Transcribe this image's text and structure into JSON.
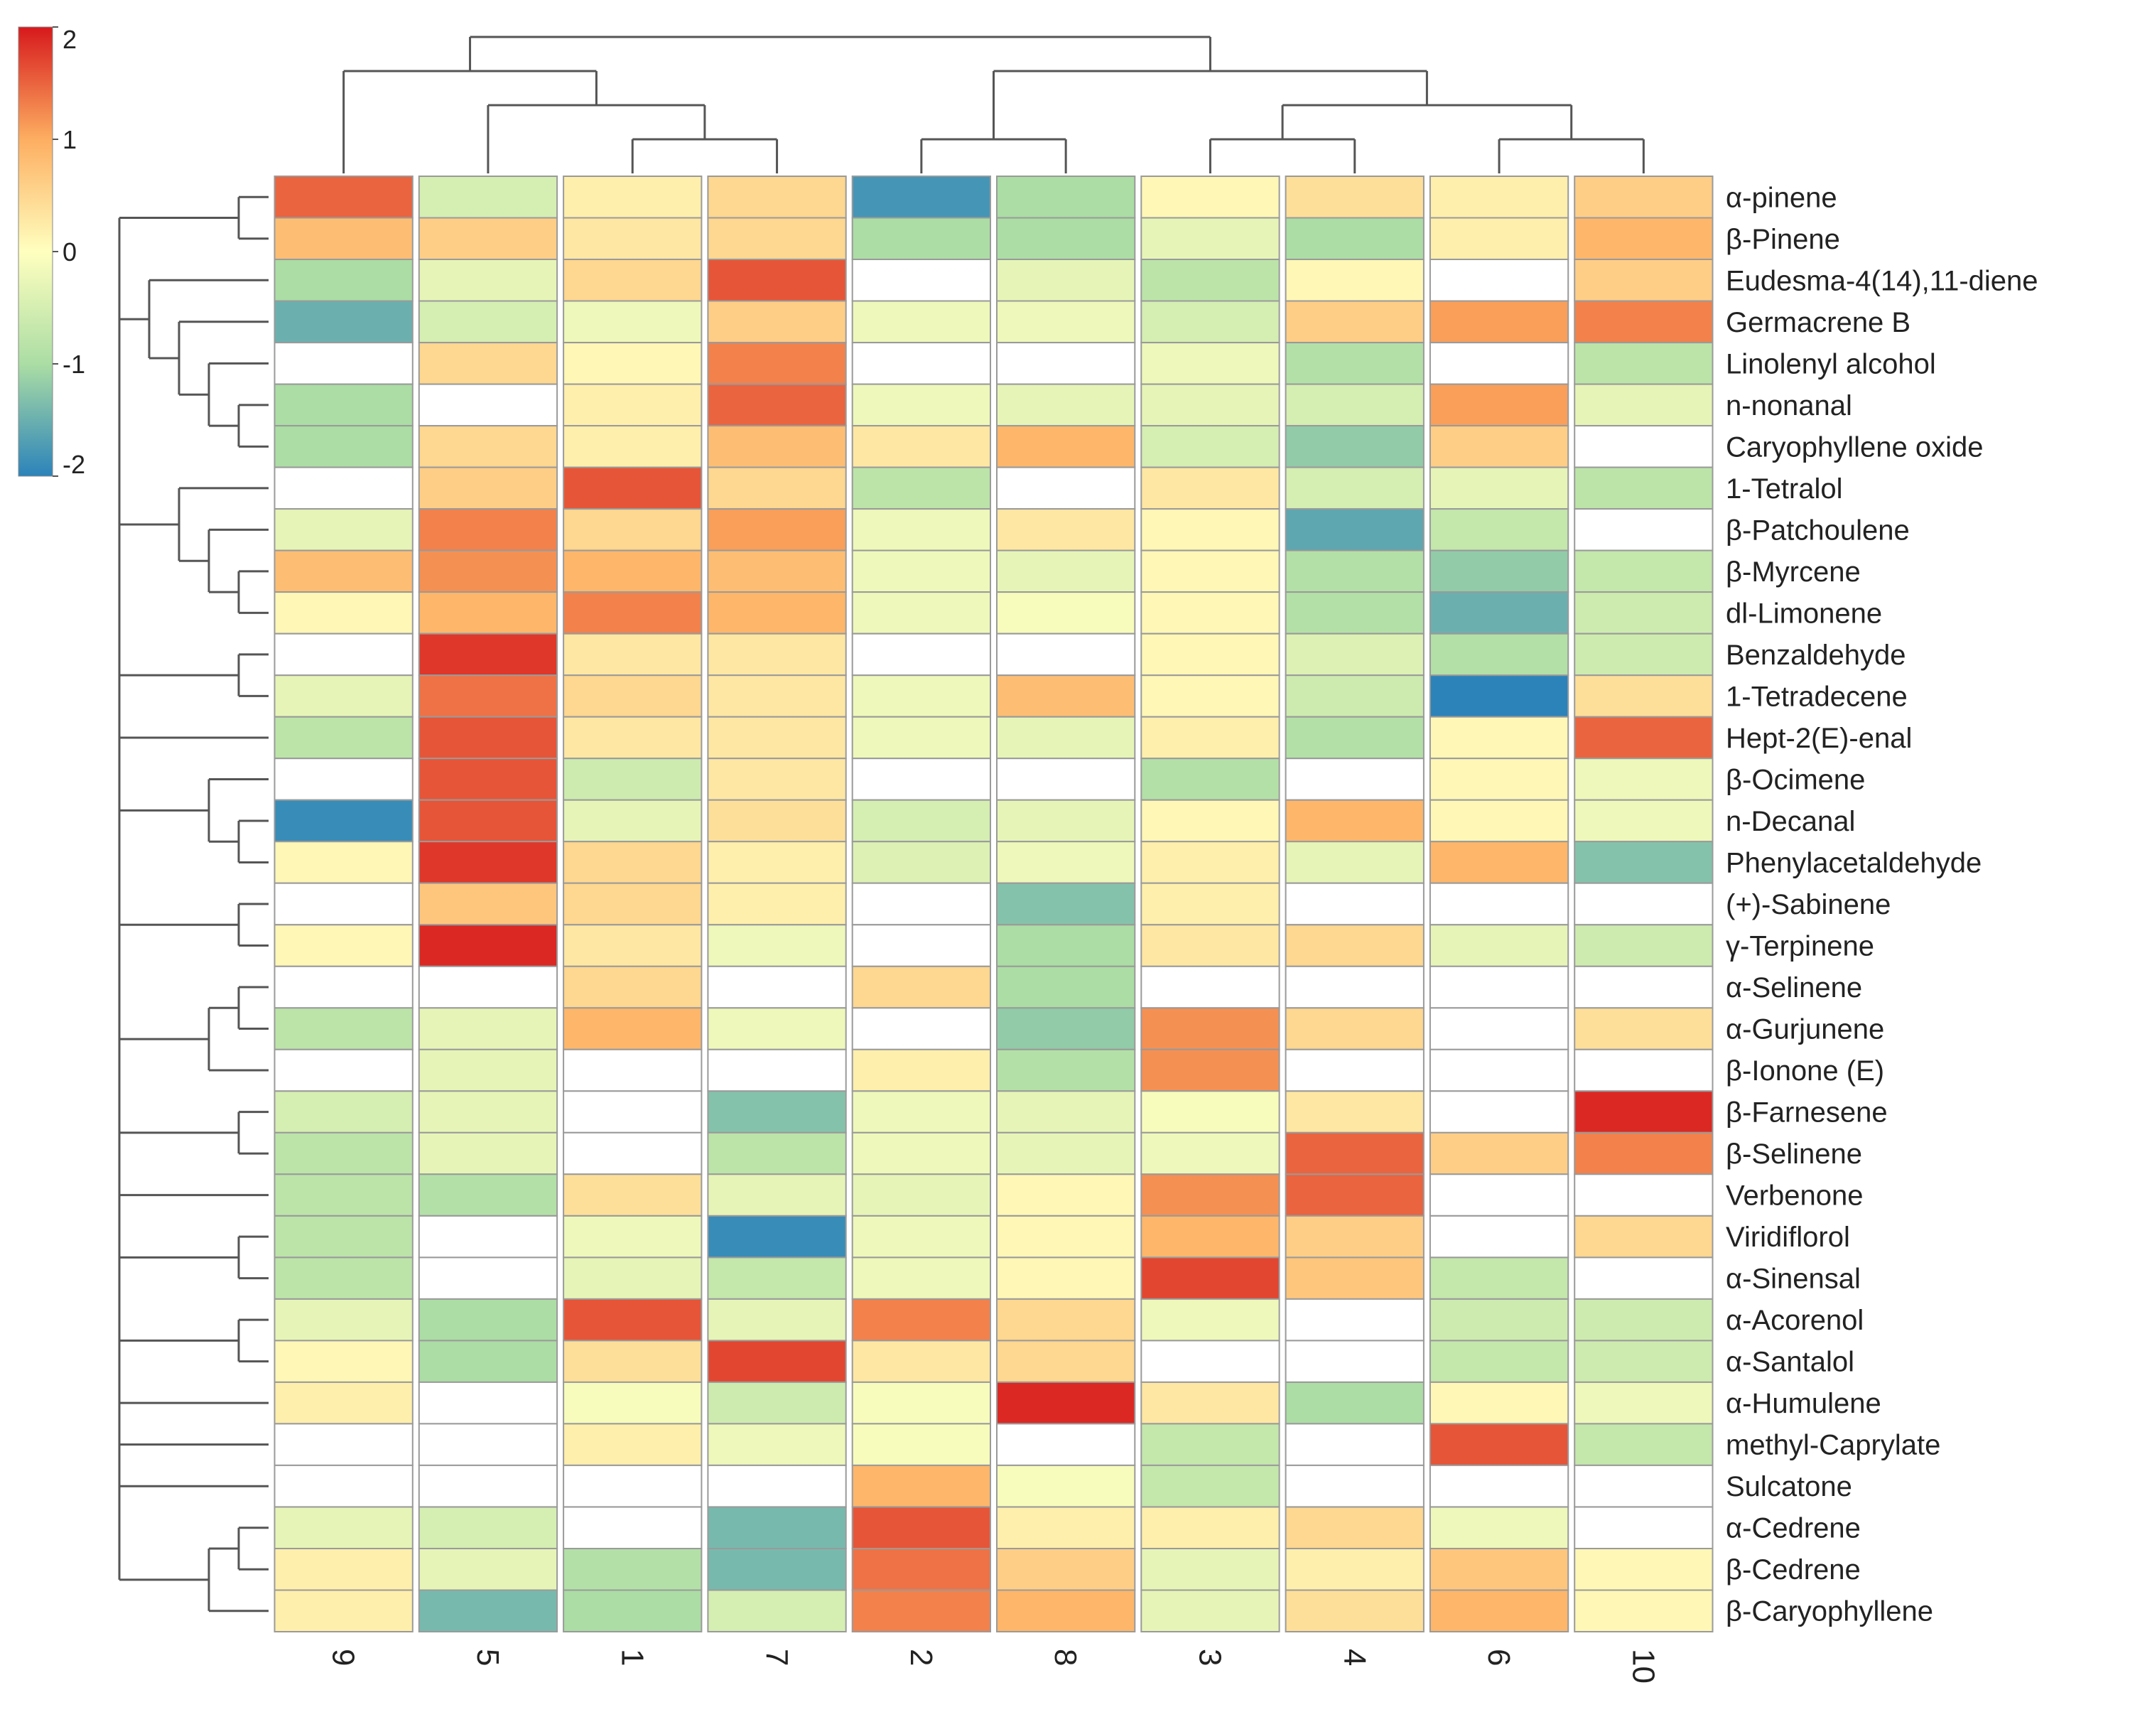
{
  "chart_data": {
    "type": "heatmap",
    "title": "",
    "xlabel": "",
    "ylabel": "",
    "columns": [
      "9",
      "5",
      "1",
      "7",
      "2",
      "8",
      "3",
      "4",
      "6",
      "10"
    ],
    "rows": [
      "α-pinene",
      "β-Pinene",
      "Eudesma-4(14),11-diene",
      "Germacrene B",
      "Linolenyl alcohol",
      "n-nonanal",
      "Caryophyllene oxide",
      "1-Tetralol",
      "β-Patchoulene",
      "β-Myrcene",
      "dl-Limonene",
      "Benzaldehyde",
      "1-Tetradecene",
      "Hept-2(E)-enal",
      "β-Ocimene",
      "n-Decanal",
      "Phenylacetaldehyde",
      "(+)-Sabinene",
      "γ-Terpinene",
      "α-Selinene",
      "α-Gurjunene",
      "β-Ionone (E)",
      "β-Farnesene",
      "β-Selinene",
      "Verbenone",
      "Viridiflorol",
      "α-Sinensal",
      "α-Acorenol",
      "α-Santalol",
      "α-Humulene",
      "methyl-Caprylate",
      "Sulcatone",
      "α-Cedrene",
      "β-Cedrene",
      "β-Caryophyllene"
    ],
    "values": [
      [
        1.5,
        -0.5,
        0.2,
        0.5,
        -1.8,
        -1.0,
        0.1,
        0.4,
        0.2,
        0.6
      ],
      [
        0.8,
        0.6,
        0.3,
        0.5,
        -1.0,
        -1.0,
        -0.3,
        -1.0,
        0.2,
        0.9
      ],
      [
        -1.0,
        -0.3,
        0.5,
        1.6,
        null,
        -0.3,
        -0.8,
        0.1,
        null,
        0.6
      ],
      [
        -1.5,
        -0.5,
        -0.2,
        0.6,
        -0.2,
        -0.2,
        -0.5,
        0.6,
        1.1,
        1.3
      ],
      [
        null,
        0.5,
        0.1,
        1.3,
        null,
        null,
        -0.2,
        -0.9,
        null,
        -0.8
      ],
      [
        -1.0,
        null,
        0.2,
        1.5,
        -0.2,
        -0.3,
        -0.3,
        -0.5,
        1.1,
        -0.3
      ],
      [
        -1.0,
        0.5,
        0.2,
        0.8,
        0.3,
        0.9,
        -0.5,
        -1.2,
        0.6,
        null
      ],
      [
        null,
        0.6,
        1.6,
        0.5,
        -0.8,
        null,
        0.3,
        -0.5,
        -0.3,
        -0.8
      ],
      [
        -0.3,
        1.3,
        0.5,
        1.1,
        -0.2,
        0.3,
        0.1,
        -1.6,
        -0.7,
        null
      ],
      [
        0.8,
        1.2,
        0.9,
        0.8,
        -0.2,
        -0.3,
        0.1,
        -0.9,
        -1.2,
        -0.7
      ],
      [
        0.1,
        0.9,
        1.3,
        0.9,
        -0.2,
        -0.1,
        0.1,
        -0.9,
        -1.5,
        -0.6
      ],
      [
        null,
        1.8,
        0.3,
        0.3,
        null,
        null,
        0.1,
        -0.4,
        -0.9,
        -0.6
      ],
      [
        -0.3,
        1.4,
        0.5,
        0.3,
        -0.2,
        0.8,
        0.1,
        -0.6,
        -2.0,
        0.4
      ],
      [
        -0.8,
        1.6,
        0.3,
        0.3,
        -0.2,
        -0.3,
        0.2,
        -0.9,
        0.1,
        1.5
      ],
      [
        null,
        1.6,
        -0.6,
        0.3,
        null,
        null,
        -0.9,
        null,
        0.1,
        -0.2
      ],
      [
        -1.9,
        1.6,
        -0.3,
        0.4,
        -0.5,
        -0.3,
        0.1,
        0.9,
        0.1,
        -0.2
      ],
      [
        0.1,
        1.8,
        0.5,
        0.2,
        -0.4,
        -0.2,
        0.2,
        -0.3,
        0.9,
        -1.3
      ],
      [
        null,
        0.7,
        0.5,
        0.2,
        null,
        -1.3,
        0.2,
        null,
        null,
        null
      ],
      [
        0.1,
        1.9,
        0.3,
        -0.2,
        null,
        -1.0,
        0.3,
        0.5,
        -0.3,
        -0.6
      ],
      [
        null,
        null,
        0.5,
        null,
        0.5,
        -1.0,
        null,
        null,
        null,
        null
      ],
      [
        -0.8,
        -0.3,
        0.9,
        -0.2,
        null,
        -1.2,
        1.2,
        0.5,
        null,
        0.4
      ],
      [
        null,
        -0.3,
        null,
        null,
        0.2,
        -0.9,
        1.2,
        null,
        null,
        null
      ],
      [
        -0.5,
        -0.3,
        null,
        -1.3,
        -0.2,
        -0.3,
        -0.1,
        0.3,
        null,
        1.9
      ],
      [
        -0.8,
        -0.3,
        null,
        -0.8,
        -0.2,
        -0.3,
        -0.2,
        1.5,
        0.6,
        1.3
      ],
      [
        -0.8,
        -0.9,
        0.4,
        -0.3,
        -0.3,
        0.1,
        1.2,
        1.5,
        null,
        null
      ],
      [
        -0.8,
        null,
        -0.2,
        -1.9,
        -0.2,
        0.1,
        0.9,
        0.6,
        null,
        0.5
      ],
      [
        -0.8,
        null,
        -0.3,
        -0.7,
        -0.2,
        0.1,
        1.7,
        0.7,
        -0.7,
        null
      ],
      [
        -0.3,
        -1.0,
        1.6,
        -0.3,
        1.3,
        0.5,
        -0.2,
        null,
        -0.6,
        -0.6
      ],
      [
        0.1,
        -1.0,
        0.4,
        1.7,
        0.3,
        0.5,
        null,
        null,
        -0.7,
        -0.6
      ],
      [
        0.2,
        null,
        -0.1,
        -0.6,
        -0.1,
        1.9,
        0.3,
        -1.0,
        0.1,
        -0.2
      ],
      [
        null,
        null,
        0.2,
        -0.2,
        -0.1,
        null,
        -0.7,
        null,
        1.6,
        -0.7
      ],
      [
        null,
        null,
        null,
        null,
        0.9,
        -0.1,
        -0.7,
        null,
        null,
        null
      ],
      [
        -0.3,
        -0.5,
        null,
        -1.4,
        1.6,
        0.2,
        0.2,
        0.5,
        -0.2,
        null
      ],
      [
        0.2,
        -0.3,
        -0.9,
        -1.4,
        1.4,
        0.6,
        -0.3,
        0.2,
        0.7,
        0.1
      ],
      [
        0.2,
        -1.4,
        -1.0,
        -0.5,
        1.3,
        0.9,
        -0.3,
        0.4,
        0.9,
        0.1
      ]
    ],
    "color_scale": {
      "min": -2,
      "max": 2,
      "ticks": [
        "2",
        "1",
        "0",
        "-1",
        "-2"
      ],
      "stops": [
        "#2b83ba",
        "#abdda4",
        "#ffffbf",
        "#fdae61",
        "#d7191c"
      ]
    },
    "missing_color": "#ffffff",
    "legend_position": "top-left",
    "column_dendrogram": [
      [
        0,
        1,
        1,
        "9",
        "5+1+7"
      ],
      [
        2,
        3,
        2,
        "1",
        "7"
      ]
    ],
    "column_clusters": [
      [
        "1",
        "7"
      ],
      [
        "5",
        "1",
        "7"
      ],
      [
        "9",
        "5",
        "1",
        "7"
      ],
      [
        "2",
        "8"
      ],
      [
        "3",
        "4"
      ],
      [
        "6",
        "10"
      ],
      [
        "3",
        "4",
        "6",
        "10"
      ],
      [
        "2",
        "8",
        "3",
        "4",
        "6",
        "10"
      ]
    ],
    "row_clusters": [
      [
        "α-pinene",
        "β-Pinene"
      ],
      [
        "n-nonanal",
        "Caryophyllene oxide"
      ],
      [
        "Linolenyl alcohol",
        "n-nonanal",
        "Caryophyllene oxide"
      ],
      [
        "Germacrene B",
        "Linolenyl alcohol",
        "n-nonanal",
        "Caryophyllene oxide"
      ],
      [
        "Eudesma-4(14),11-diene",
        "Germacrene B",
        "Linolenyl alcohol",
        "n-nonanal",
        "Caryophyllene oxide"
      ],
      [
        "β-Myrcene",
        "dl-Limonene"
      ],
      [
        "β-Patchoulene",
        "β-Myrcene",
        "dl-Limonene"
      ],
      [
        "1-Tetralol",
        "β-Patchoulene",
        "β-Myrcene",
        "dl-Limonene"
      ],
      [
        "Benzaldehyde",
        "1-Tetradecene"
      ],
      [
        "n-Decanal",
        "Phenylacetaldehyde"
      ],
      [
        "β-Ocimene",
        "n-Decanal",
        "Phenylacetaldehyde"
      ],
      [
        "(+)-Sabinene",
        "γ-Terpinene"
      ],
      [
        "α-Selinene",
        "α-Gurjunene"
      ],
      [
        "α-Selinene",
        "α-Gurjunene",
        "β-Ionone (E)"
      ],
      [
        "β-Farnesene",
        "β-Selinene"
      ],
      [
        "Viridiflorol",
        "α-Sinensal"
      ],
      [
        "α-Acorenol",
        "α-Santalol"
      ],
      [
        "α-Cedrene",
        "β-Cedrene"
      ],
      [
        "α-Cedrene",
        "β-Cedrene",
        "β-Caryophyllene"
      ]
    ]
  }
}
